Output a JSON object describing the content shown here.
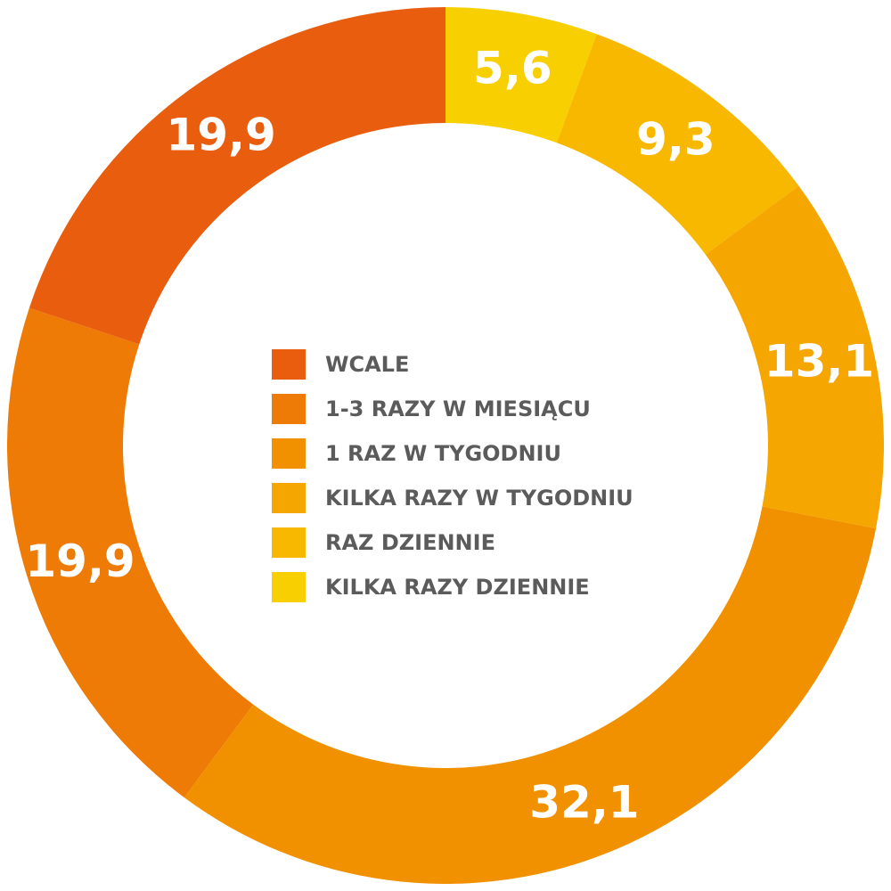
{
  "chart_data": {
    "type": "pie",
    "donut": true,
    "categories": [
      "WCALE",
      "1-3 RAZY W MIESIĄCU",
      "1 RAZ W TYGODNIU",
      "KILKA RAZY W TYGODNIU",
      "RAZ DZIENNIE",
      "KILKA RAZY DZIENNIE"
    ],
    "values": [
      19.9,
      19.9,
      32.1,
      13.1,
      9.3,
      5.6
    ],
    "value_labels": [
      "19,9",
      "19,9",
      "32,1",
      "13,1",
      "9,3",
      "5,6"
    ],
    "colors": [
      "#E85D0E",
      "#EE7B06",
      "#F29100",
      "#F6A600",
      "#F8B800",
      "#F8CF00"
    ],
    "start_angle_deg": 0,
    "direction": "clockwise",
    "legend_position": "center"
  }
}
